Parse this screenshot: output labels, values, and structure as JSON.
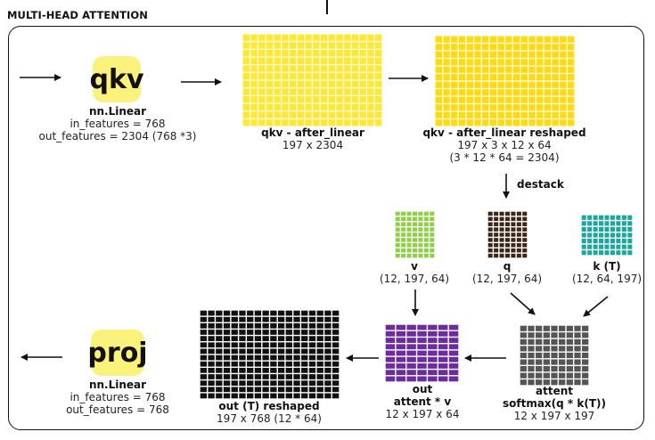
{
  "header": {
    "title": "MULTI-HEAD ATTENTION"
  },
  "colors": {
    "badge": "#fbf27b",
    "qkv_grid": "#fde83a",
    "qkv_grid_line": "#fffbd0",
    "reshaped_grid": "#fdd916",
    "v_grid": "#8fcf43",
    "q_grid": "#3d2615",
    "k_grid": "#1ba79b",
    "attent_grid": "#555555",
    "out_grid": "#6b2d9b",
    "out_reshaped_grid": "#111111"
  },
  "qkv_block": {
    "badge": "qkv",
    "name": "nn.Linear",
    "in_features": "in_features = 768",
    "out_features": "out_features = 2304 (768 *3)"
  },
  "after_linear": {
    "title": "qkv - after_linear",
    "shape": "197 x 2304"
  },
  "after_linear_reshaped": {
    "title": "qkv - after_linear reshaped",
    "shape": "197 x 3 x 12 x 64",
    "note": "(3 * 12 * 64 = 2304)"
  },
  "destack": {
    "label": "destack"
  },
  "v_tensor": {
    "title": "v",
    "shape": "(12, 197, 64)"
  },
  "q_tensor": {
    "title": "q",
    "shape": "(12, 197, 64)"
  },
  "k_tensor": {
    "title": "k (T)",
    "shape": "(12, 64, 197)"
  },
  "attent": {
    "title": "attent",
    "formula": "softmax(q * k(T))",
    "shape": "12 x 197 x 197"
  },
  "out": {
    "title": "out",
    "formula": "attent * v",
    "shape": "12 x 197 x 64"
  },
  "out_reshaped": {
    "title": "out (T) reshaped",
    "shape": "197 x 768 (12 * 64)"
  },
  "proj_block": {
    "badge": "proj",
    "name": "nn.Linear",
    "in_features": "in_features = 768",
    "out_features": "out_features = 768"
  }
}
